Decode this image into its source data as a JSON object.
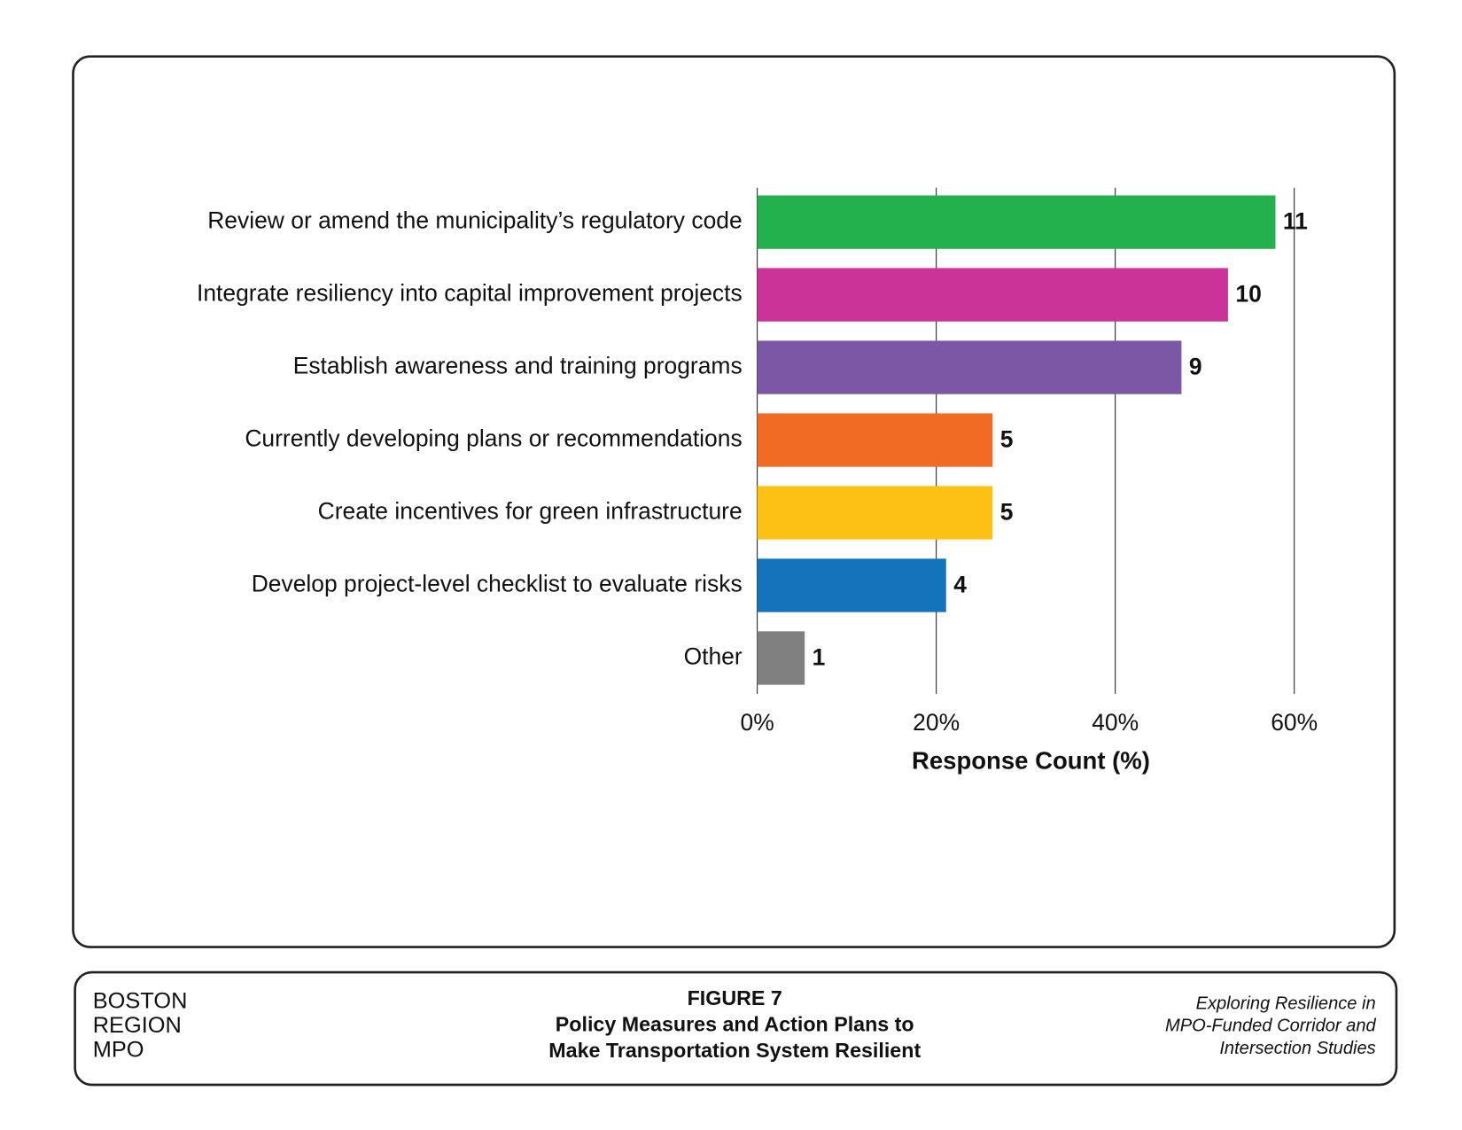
{
  "chart_data": {
    "type": "bar",
    "orientation": "horizontal",
    "categories": [
      "Review or amend the municipality’s regulatory code",
      "Integrate resiliency into capital improvement projects",
      "Establish awareness and training programs",
      "Currently developing plans or recommendations",
      "Create incentives for green infrastructure",
      "Develop project-level checklist to evaluate risks",
      "Other"
    ],
    "values": [
      57.9,
      52.6,
      47.4,
      26.3,
      26.3,
      21.1,
      5.3
    ],
    "counts": [
      11,
      10,
      9,
      5,
      5,
      4,
      1
    ],
    "colors": [
      "#22b14c",
      "#cc3399",
      "#7b57a5",
      "#f26b25",
      "#fdc116",
      "#1473ba",
      "#808080"
    ],
    "xlim": [
      0,
      60
    ],
    "xticks": [
      {
        "value": 0,
        "label": "0%"
      },
      {
        "value": 20,
        "label": "20%"
      },
      {
        "value": 40,
        "label": "40%"
      },
      {
        "value": 60,
        "label": "60%"
      }
    ],
    "xlabel": "Response Count (%)",
    "grid": true
  },
  "footer": {
    "agency": [
      "BOSTON",
      "REGION",
      "MPO"
    ],
    "figure": [
      "FIGURE 7",
      "Policy Measures and Action Plans to",
      "Make Transportation System Resilient"
    ],
    "study": [
      "Exploring Resilience in",
      "MPO-Funded Corridor and",
      "Intersection Studies"
    ]
  }
}
